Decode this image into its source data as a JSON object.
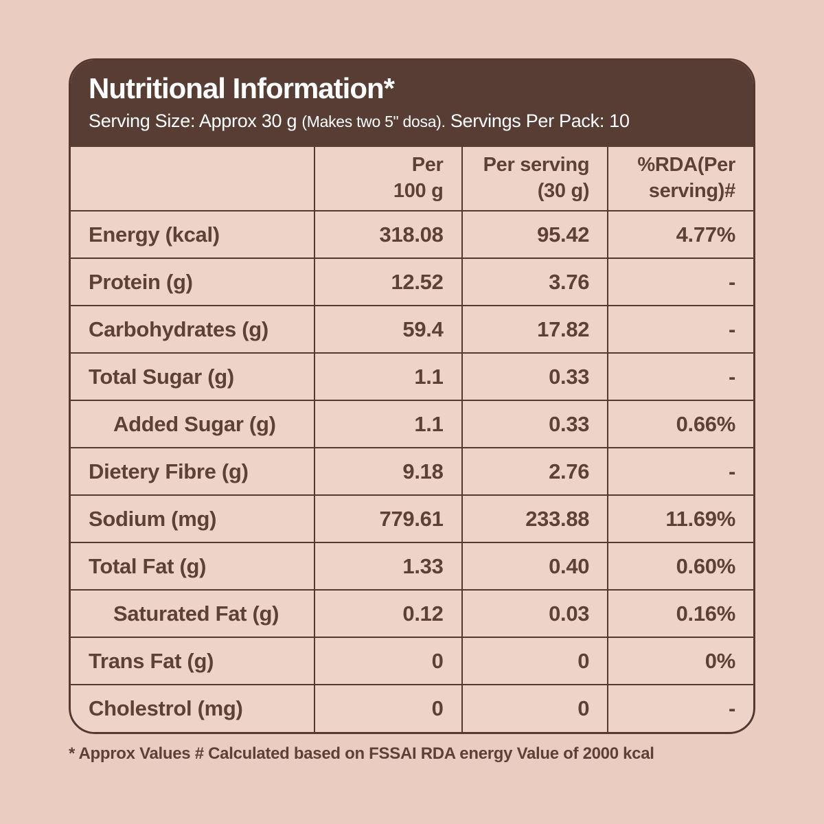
{
  "colors": {
    "page_background": "#eaccc1",
    "card_background": "#eed3c8",
    "header_background": "#583d34",
    "border": "#53392f",
    "text_dark": "#5d4137",
    "text_light": "#ffffff"
  },
  "header": {
    "title": "Nutritional Information*",
    "serving": {
      "part1": "Serving Size: Approx 30 g ",
      "part2": "(Makes two 5\" dosa).",
      "part3": " Servings Per Pack: 10"
    }
  },
  "table": {
    "columns": [
      "",
      "Per\n100 g",
      "Per serving\n(30 g)",
      "%RDA(Per\nserving)#"
    ],
    "rows": [
      {
        "label": "Energy (kcal)",
        "indent": false,
        "per_100g": "318.08",
        "per_serving": "95.42",
        "rda": "4.77%"
      },
      {
        "label": "Protein (g)",
        "indent": false,
        "per_100g": "12.52",
        "per_serving": "3.76",
        "rda": "-"
      },
      {
        "label": "Carbohydrates (g)",
        "indent": false,
        "per_100g": "59.4",
        "per_serving": "17.82",
        "rda": "-"
      },
      {
        "label": "Total Sugar (g)",
        "indent": false,
        "per_100g": "1.1",
        "per_serving": "0.33",
        "rda": "-"
      },
      {
        "label": "Added Sugar (g)",
        "indent": true,
        "per_100g": "1.1",
        "per_serving": "0.33",
        "rda": "0.66%"
      },
      {
        "label": "Dietery Fibre (g)",
        "indent": false,
        "per_100g": "9.18",
        "per_serving": "2.76",
        "rda": "-"
      },
      {
        "label": "Sodium (mg)",
        "indent": false,
        "per_100g": "779.61",
        "per_serving": "233.88",
        "rda": "11.69%"
      },
      {
        "label": "Total Fat (g)",
        "indent": false,
        "per_100g": "1.33",
        "per_serving": "0.40",
        "rda": "0.60%"
      },
      {
        "label": "Saturated Fat (g)",
        "indent": true,
        "per_100g": "0.12",
        "per_serving": "0.03",
        "rda": "0.16%"
      },
      {
        "label": "Trans Fat (g)",
        "indent": false,
        "per_100g": "0",
        "per_serving": "0",
        "rda": "0%"
      },
      {
        "label": "Cholestrol (mg)",
        "indent": false,
        "per_100g": "0",
        "per_serving": "0",
        "rda": "-"
      }
    ]
  },
  "footnote": "* Approx Values # Calculated based on FSSAI RDA energy Value of 2000 kcal"
}
